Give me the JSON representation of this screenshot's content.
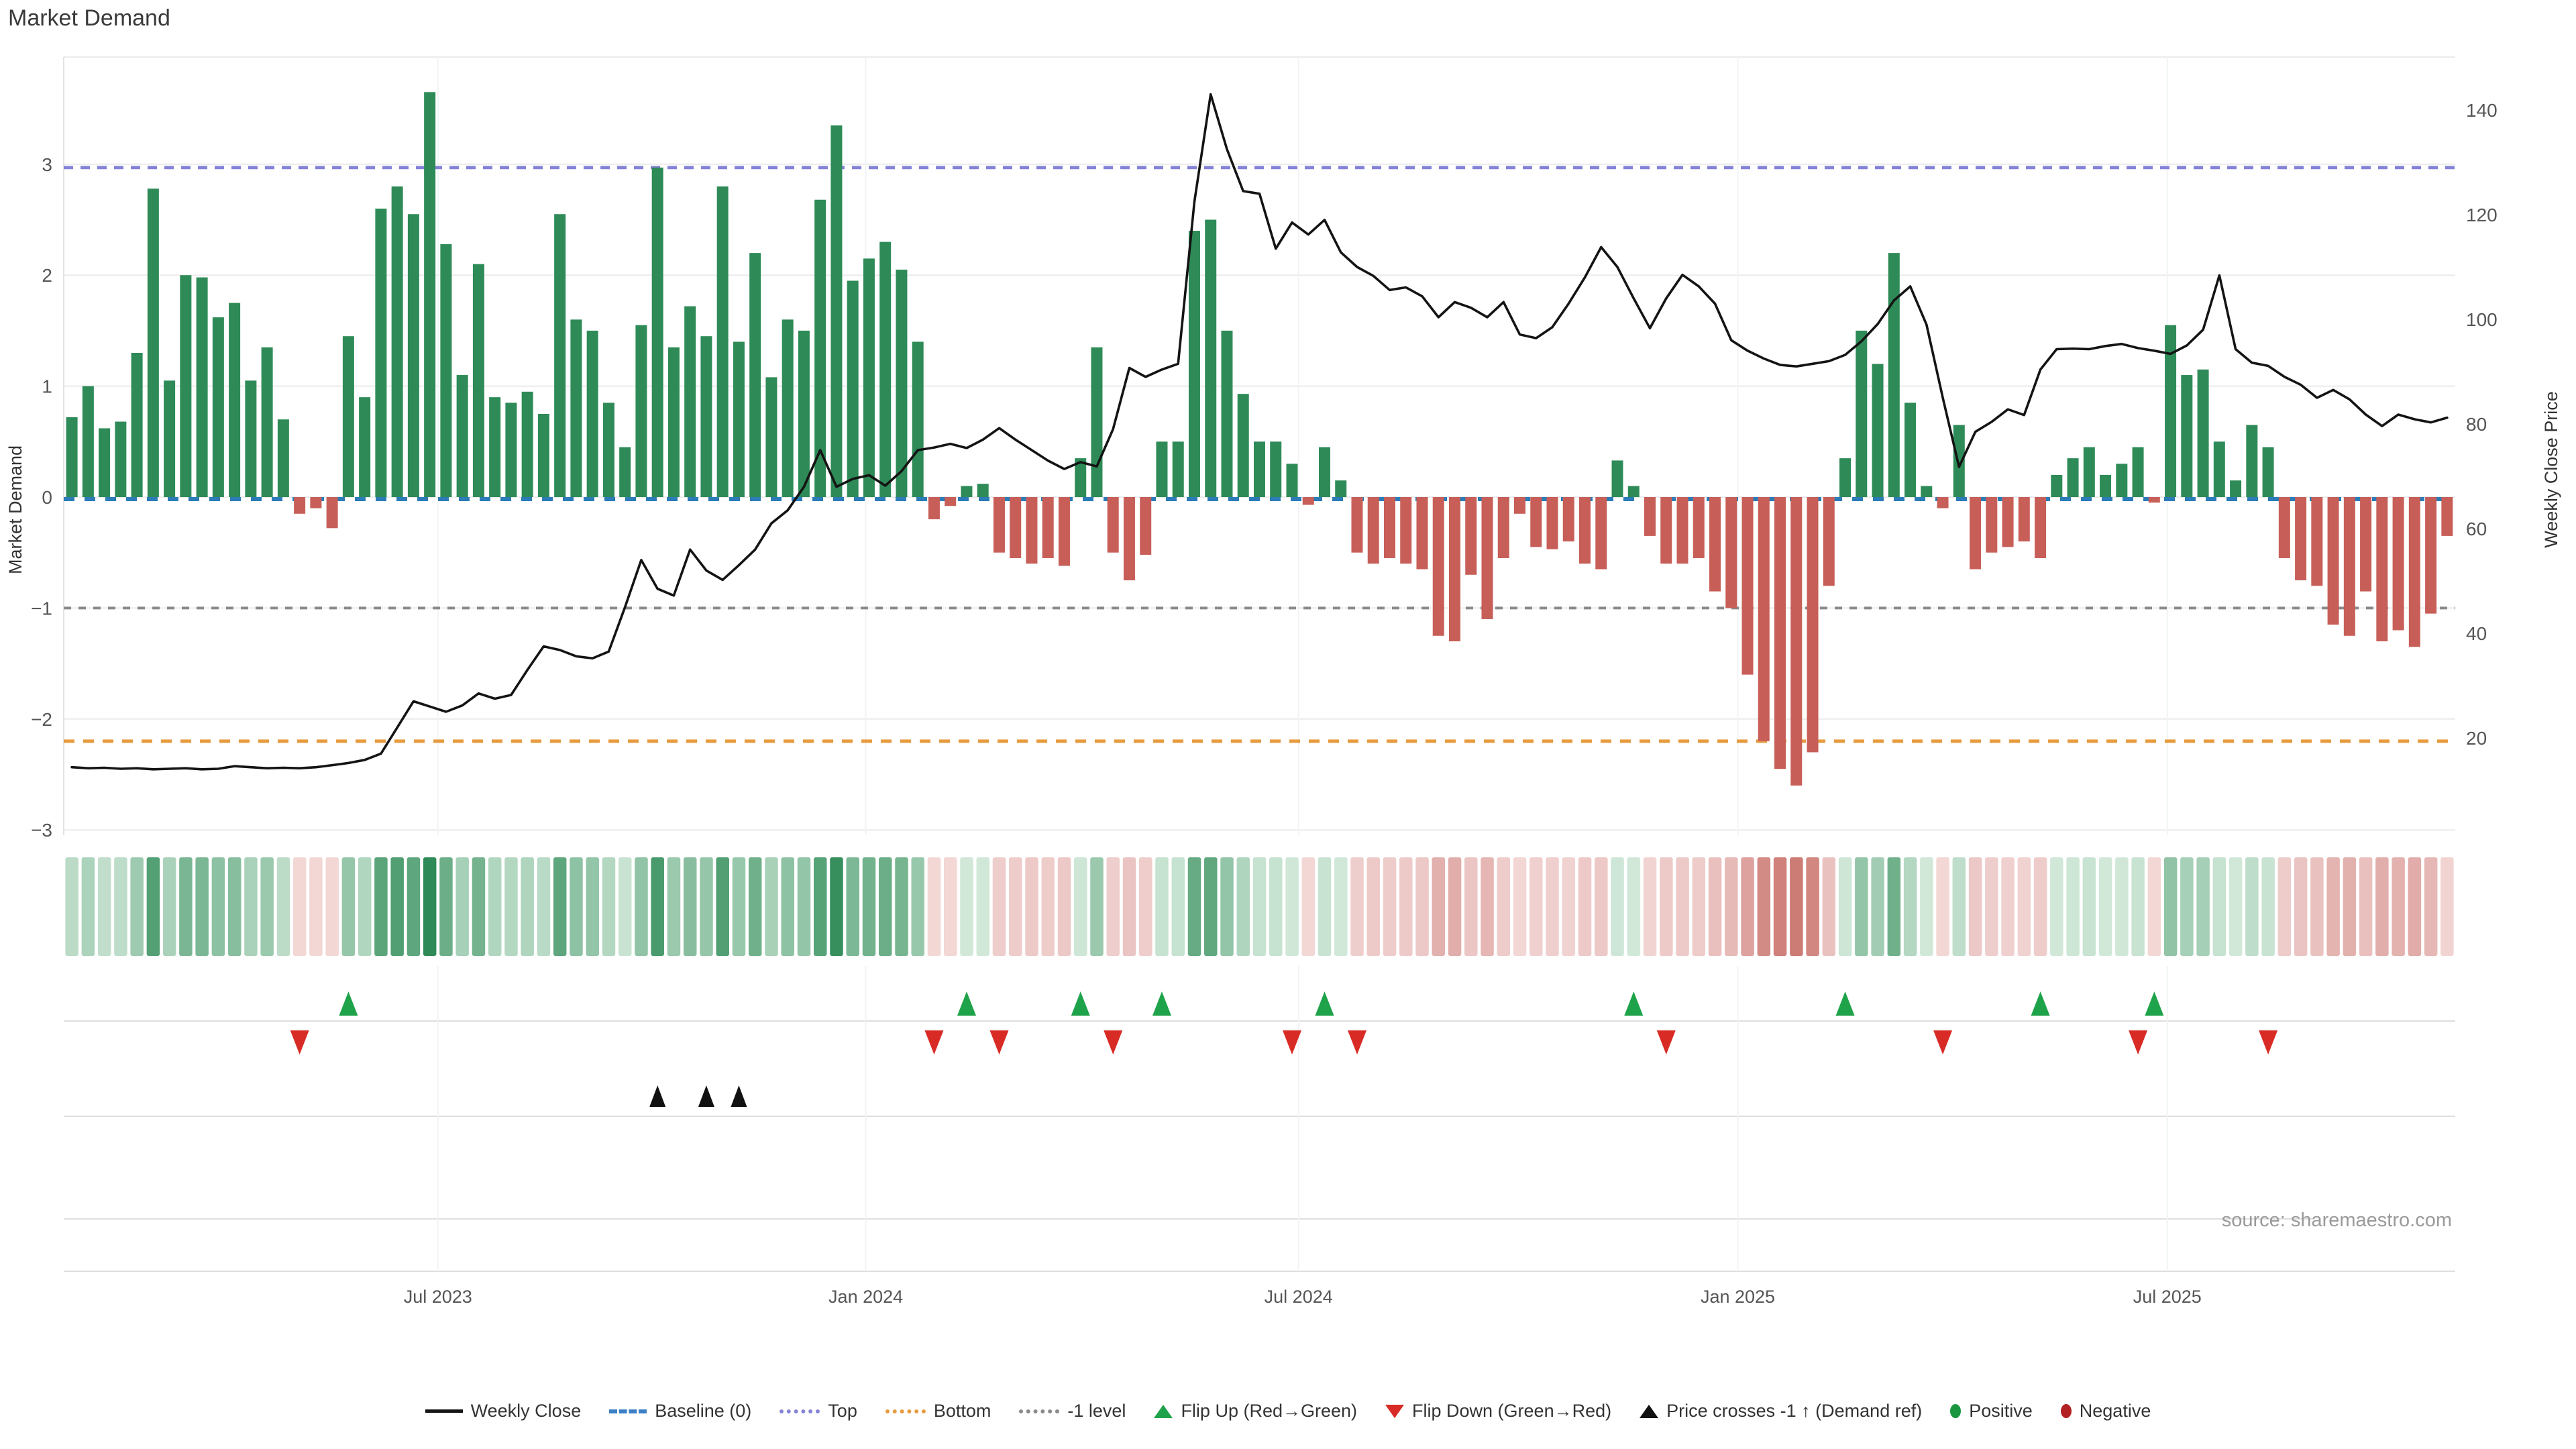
{
  "title": "Market Demand",
  "source_note": "source: sharemaestro.com",
  "colors": {
    "bar_positive": "#2e8b57",
    "bar_negative": "#c75f58",
    "price_line": "#141414",
    "baseline": "#2b7cb9",
    "top_line": "#8583d7",
    "bottom_line": "#e79b3f",
    "minus1_line": "#8a8a8a",
    "flip_up": "#1fa34a",
    "flip_down": "#d92b25",
    "price_cross": "#111111",
    "positive_dot": "#1a9641",
    "negative_dot": "#b22222",
    "grid": "#ebebeb",
    "grid_faint": "#f1f3f5",
    "panel_line": "#dedede",
    "tick_text": "#555555",
    "axis_title": "#333333",
    "source_text": "#9a9a9a",
    "heat_pos_lo": "#dff0e4",
    "heat_pos_hi": "#2e8b57",
    "heat_neg_lo": "#f6e2e1",
    "heat_neg_hi": "#bf574f"
  },
  "legend": {
    "items": [
      {
        "swatch": "line",
        "label": "Weekly Close"
      },
      {
        "swatch": "dash",
        "label": "Baseline (0)",
        "color": "#3b7fc4"
      },
      {
        "swatch": "dots",
        "label": "Top",
        "color": "#8583d7"
      },
      {
        "swatch": "dots",
        "label": "Bottom",
        "color": "#e79b3f"
      },
      {
        "swatch": "dots",
        "label": "-1 level",
        "color": "#8a8a8a"
      },
      {
        "swatch": "tri-up",
        "label": "Flip Up (Red→Green)",
        "color": "#1fa34a"
      },
      {
        "swatch": "tri-down",
        "label": "Flip Down (Green→Red)",
        "color": "#d92b25"
      },
      {
        "swatch": "tri-up",
        "label": "Price crosses -1 ↑ (Demand ref)",
        "color": "#111111"
      },
      {
        "swatch": "dot",
        "label": "Positive",
        "color": "#1a9641"
      },
      {
        "swatch": "dot",
        "label": "Negative",
        "color": "#b22222"
      }
    ]
  },
  "chart_data": {
    "type": "bar",
    "subtype": "combo-bar-line-heatmap",
    "title": "Market Demand",
    "left_axis": {
      "label": "Market Demand",
      "ticks": [
        3,
        2,
        1,
        0,
        -1,
        -2,
        -3
      ],
      "ylim": [
        -3.3,
        3.97
      ]
    },
    "right_axis": {
      "label": "Weekly Close Price",
      "ticks": [
        140,
        120,
        100,
        80,
        60,
        40,
        20
      ],
      "ylim": [
        8,
        152
      ]
    },
    "x_ticks": [
      {
        "label": "Jul 2023",
        "i": 22.5
      },
      {
        "label": "Jan 2024",
        "i": 48.8
      },
      {
        "label": "Jul 2024",
        "i": 75.4
      },
      {
        "label": "Jan 2025",
        "i": 102.4
      },
      {
        "label": "Jul 2025",
        "i": 128.8
      }
    ],
    "reference_lines": {
      "baseline": 0,
      "top": 2.97,
      "bottom": -2.2,
      "minus1": -1
    },
    "series": [
      {
        "name": "Market Demand (weekly bars)",
        "values": [
          0.72,
          1.0,
          0.62,
          0.68,
          1.3,
          2.78,
          1.05,
          2.0,
          1.98,
          1.62,
          1.75,
          1.05,
          1.35,
          0.7,
          -0.15,
          -0.1,
          -0.28,
          1.45,
          0.9,
          2.6,
          2.8,
          2.55,
          3.65,
          2.28,
          1.1,
          2.1,
          0.9,
          0.85,
          0.95,
          0.75,
          2.55,
          1.6,
          1.5,
          0.85,
          0.45,
          1.55,
          2.97,
          1.35,
          1.72,
          1.45,
          2.8,
          1.4,
          2.2,
          1.08,
          1.6,
          1.5,
          2.68,
          3.35,
          1.95,
          2.15,
          2.3,
          2.05,
          1.4,
          -0.2,
          -0.08,
          0.1,
          0.12,
          -0.5,
          -0.55,
          -0.6,
          -0.55,
          -0.62,
          0.35,
          1.35,
          -0.5,
          -0.75,
          -0.52,
          0.5,
          0.5,
          2.4,
          2.5,
          1.5,
          0.93,
          0.5,
          0.5,
          0.3,
          -0.07,
          0.45,
          0.15,
          -0.5,
          -0.6,
          -0.55,
          -0.6,
          -0.65,
          -1.25,
          -1.3,
          -0.7,
          -1.1,
          -0.55,
          -0.15,
          -0.45,
          -0.47,
          -0.4,
          -0.6,
          -0.65,
          0.33,
          0.1,
          -0.35,
          -0.6,
          -0.6,
          -0.55,
          -0.85,
          -1.0,
          -1.6,
          -2.2,
          -2.45,
          -2.6,
          -2.3,
          -0.8,
          0.35,
          1.5,
          1.2,
          2.2,
          0.85,
          0.1,
          -0.1,
          0.65,
          -0.65,
          -0.5,
          -0.45,
          -0.4,
          -0.55,
          0.2,
          0.35,
          0.45,
          0.2,
          0.3,
          0.45,
          -0.05,
          1.55,
          1.1,
          1.15,
          0.5,
          0.15,
          0.65,
          0.45,
          -0.55,
          -0.75,
          -0.8,
          -1.15,
          -1.25,
          -0.85,
          -1.3,
          -1.2,
          -1.35,
          -1.05,
          -0.35
        ]
      },
      {
        "name": "Weekly Close",
        "values": [
          14.4,
          14.2,
          14.3,
          14.1,
          14.2,
          14.0,
          14.1,
          14.2,
          14.0,
          14.1,
          14.6,
          14.4,
          14.2,
          14.3,
          14.2,
          14.4,
          14.8,
          15.2,
          15.8,
          17.0,
          22,
          27,
          26,
          25,
          26.2,
          28.5,
          27.5,
          28.2,
          33,
          37.5,
          36.8,
          35.6,
          35.2,
          36.5,
          45,
          54,
          48.5,
          47.2,
          56,
          52,
          50.2,
          53,
          56,
          61,
          63.5,
          68,
          75,
          68,
          69.5,
          70.2,
          68.2,
          71,
          75,
          75.5,
          76.2,
          75.4,
          77,
          79.2,
          77,
          75,
          73,
          71.4,
          72.7,
          71.9,
          79,
          90.7,
          89,
          90.4,
          91.5,
          122.5,
          143,
          132.5,
          124.5,
          124,
          113.5,
          118.5,
          116.2,
          119,
          112.8,
          110,
          108.3,
          105.6,
          106.1,
          104.4,
          100.4,
          103.3,
          102.2,
          100.4,
          103.3,
          97.1,
          96.4,
          98.5,
          103,
          108,
          113.8,
          110,
          104,
          98.3,
          104,
          108.5,
          106.3,
          103,
          96,
          94,
          92.5,
          91.3,
          91,
          91.5,
          92,
          93.2,
          95.8,
          99.1,
          103.6,
          106.3,
          99,
          85,
          71.8,
          78.5,
          80.4,
          82.8,
          81.7,
          90.4,
          94.3,
          94.4,
          94.3,
          94.9,
          95.3,
          94.5,
          94,
          93.4,
          95,
          98,
          108.4,
          94.3,
          91.7,
          91.1,
          89,
          87.5,
          85,
          86.5,
          84.7,
          81.8,
          79.6,
          81.8,
          80.9,
          80.3,
          81.2
        ]
      }
    ],
    "markers": {
      "flip_up_indices": [
        17,
        55,
        62,
        67,
        77,
        96,
        109,
        121,
        128
      ],
      "flip_down_indices": [
        14,
        53,
        57,
        64,
        75,
        79,
        98,
        115,
        127,
        135
      ],
      "price_cross_indices": [
        36,
        39,
        41
      ]
    },
    "heatmap": {
      "note": "one cell per week, color intensity = |demand|, green positive / red negative"
    },
    "grid": "horizontal demand gridlines on, faint vertical at date ticks",
    "legend_position": "bottom-center"
  }
}
